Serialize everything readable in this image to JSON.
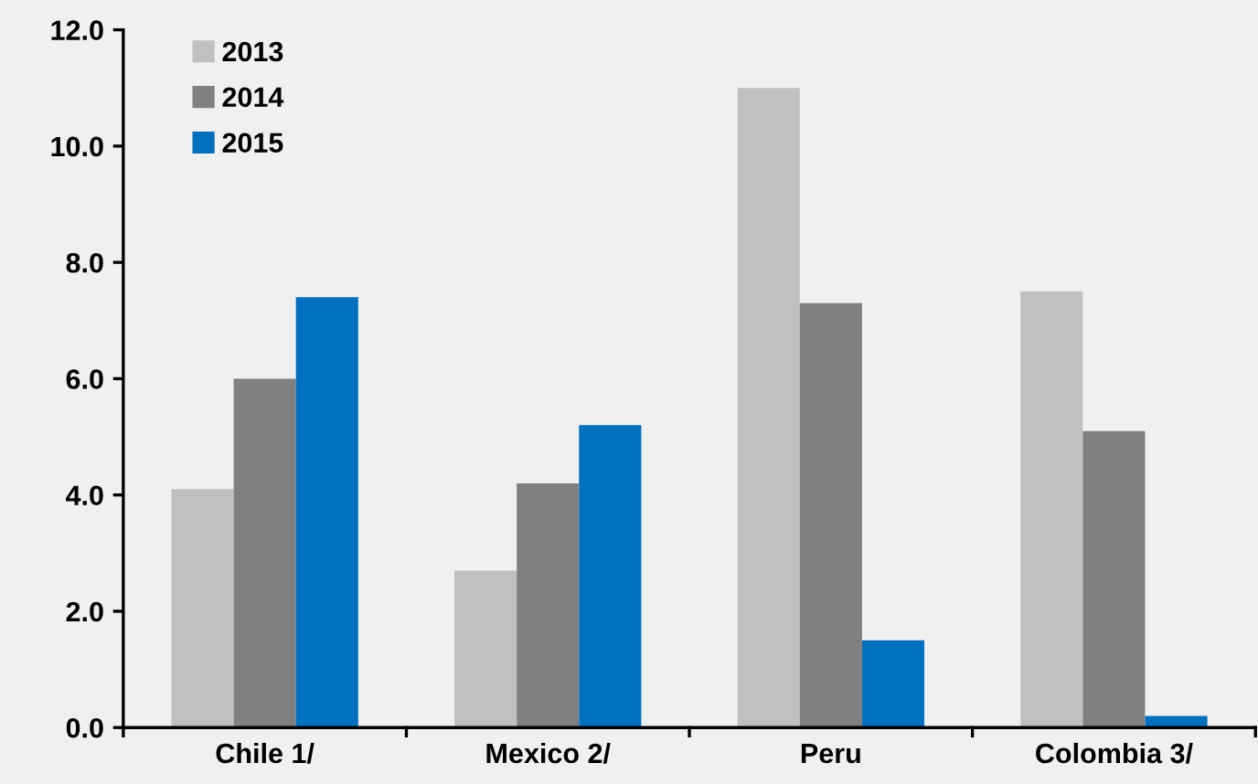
{
  "chart_data": {
    "type": "bar",
    "categories": [
      "Chile 1/",
      "Mexico 2/",
      "Peru",
      "Colombia 3/"
    ],
    "series": [
      {
        "name": "2013",
        "color": "#c0c0c0",
        "values": [
          4.1,
          2.7,
          11.0,
          7.5
        ]
      },
      {
        "name": "2014",
        "color": "#808080",
        "values": [
          6.0,
          4.2,
          7.3,
          5.1
        ]
      },
      {
        "name": "2015",
        "color": "#0070c0",
        "values": [
          7.4,
          5.2,
          1.5,
          0.2
        ]
      }
    ],
    "ylim": [
      0,
      12
    ],
    "yticks": [
      {
        "value": 0,
        "label": "0.0"
      },
      {
        "value": 2,
        "label": "2.0"
      },
      {
        "value": 4,
        "label": "4.0"
      },
      {
        "value": 6,
        "label": "6.0"
      },
      {
        "value": 8,
        "label": "8.0"
      },
      {
        "value": 10,
        "label": "10.0"
      },
      {
        "value": 12,
        "label": "12.0"
      }
    ],
    "grid": false,
    "legend": "top left"
  }
}
